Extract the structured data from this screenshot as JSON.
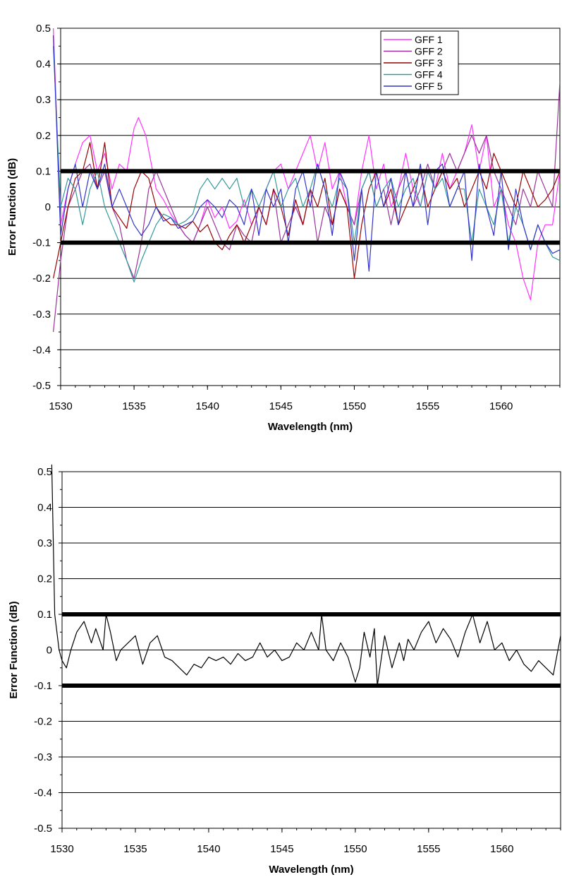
{
  "chart_data": [
    {
      "type": "line",
      "title": "",
      "xlabel": "Wavelength (nm)",
      "ylabel": "Error Function (dB)",
      "xlim": [
        1530,
        1564
      ],
      "ylim": [
        -0.5,
        0.5
      ],
      "x_ticks": [
        1530,
        1535,
        1540,
        1545,
        1550,
        1555,
        1560
      ],
      "y_ticks": [
        -0.5,
        -0.4,
        -0.3,
        -0.2,
        -0.1,
        0,
        0.1,
        0.2,
        0.3,
        0.4,
        0.5
      ],
      "y_tick_labels": [
        "-0.5",
        "-0.4",
        "-0.3",
        "-0.2",
        "-0.1",
        "0",
        "0.1",
        "0.2",
        "0.3",
        "0.4",
        "0.5"
      ],
      "x_tick_labels": [
        "1530",
        "1535",
        "1540",
        "1545",
        "1550",
        "1555",
        "1560"
      ],
      "grid": "horizontal",
      "legend_position": "top-right",
      "limit_lines": [
        0.1,
        -0.1
      ],
      "series": [
        {
          "name": "GFF 1",
          "color": "#ff33ff",
          "x": [
            1529.5,
            1530,
            1530.5,
            1531,
            1531.5,
            1532,
            1532.5,
            1533,
            1533.5,
            1534,
            1534.5,
            1535,
            1535.3,
            1535.8,
            1536.5,
            1537,
            1537.5,
            1538,
            1538.5,
            1539,
            1539.5,
            1540,
            1540.5,
            1541,
            1541.5,
            1542,
            1542.5,
            1543,
            1543.5,
            1544,
            1544.5,
            1545,
            1545.5,
            1546,
            1546.5,
            1547,
            1547.5,
            1548,
            1548.5,
            1549,
            1549.5,
            1550,
            1550.5,
            1551,
            1551.5,
            1552,
            1552.5,
            1553,
            1553.5,
            1554,
            1554.5,
            1555,
            1555.5,
            1556,
            1556.5,
            1557,
            1557.5,
            1558,
            1558.5,
            1559,
            1559.5,
            1560,
            1560.5,
            1561,
            1561.5,
            1562,
            1562.5,
            1563,
            1563.5,
            1564
          ],
          "values": [
            0.5,
            -0.05,
            0.05,
            0.12,
            0.18,
            0.2,
            0.1,
            0.15,
            0.05,
            0.12,
            0.1,
            0.22,
            0.25,
            0.2,
            0.05,
            0.02,
            -0.02,
            -0.05,
            -0.08,
            -0.1,
            -0.05,
            0.02,
            -0.03,
            0.0,
            -0.06,
            -0.04,
            0.02,
            -0.05,
            0.0,
            0.05,
            0.1,
            0.12,
            0.05,
            0.1,
            0.15,
            0.2,
            0.1,
            0.18,
            0.05,
            0.1,
            0.0,
            -0.05,
            0.1,
            0.2,
            0.05,
            0.12,
            0.0,
            0.05,
            0.15,
            0.05,
            0.0,
            0.1,
            0.05,
            0.15,
            0.05,
            0.1,
            0.15,
            0.23,
            0.1,
            0.2,
            0.0,
            0.05,
            -0.05,
            -0.1,
            -0.2,
            -0.26,
            -0.1,
            -0.05,
            -0.05,
            0.1
          ]
        },
        {
          "name": "GFF 2",
          "color": "#993399",
          "x": [
            1529.5,
            1530,
            1530.5,
            1531,
            1531.5,
            1532,
            1532.5,
            1533,
            1533.5,
            1534,
            1534.5,
            1535,
            1535.5,
            1536,
            1536.5,
            1537,
            1537.5,
            1538,
            1538.5,
            1539,
            1539.5,
            1540,
            1540.5,
            1541,
            1541.5,
            1542,
            1542.5,
            1543,
            1543.5,
            1544,
            1544.5,
            1545,
            1545.5,
            1546,
            1546.5,
            1547,
            1547.5,
            1548,
            1548.5,
            1549,
            1549.5,
            1550,
            1550.5,
            1551,
            1551.5,
            1552,
            1552.5,
            1553,
            1553.5,
            1554,
            1554.5,
            1555,
            1555.5,
            1556,
            1556.5,
            1557,
            1557.5,
            1558,
            1558.5,
            1559,
            1559.5,
            1560,
            1560.5,
            1561,
            1561.5,
            1562,
            1562.5,
            1563,
            1563.5,
            1564
          ],
          "values": [
            -0.35,
            -0.15,
            0.0,
            0.05,
            0.1,
            0.12,
            0.05,
            0.1,
            0.0,
            -0.05,
            -0.15,
            -0.2,
            -0.1,
            0.05,
            0.1,
            0.05,
            0.0,
            -0.05,
            -0.08,
            -0.1,
            -0.05,
            0.0,
            -0.05,
            -0.1,
            -0.12,
            -0.05,
            -0.08,
            -0.1,
            0.0,
            -0.05,
            0.05,
            -0.1,
            -0.05,
            0.0,
            -0.05,
            0.05,
            -0.1,
            0.0,
            -0.05,
            0.05,
            0.0,
            -0.05,
            0.05,
            0.1,
            0.0,
            0.05,
            -0.05,
            0.05,
            0.1,
            0.0,
            0.05,
            0.12,
            0.05,
            0.1,
            0.15,
            0.1,
            0.15,
            0.2,
            0.15,
            0.2,
            0.1,
            0.05,
            0.0,
            -0.05,
            0.05,
            0.0,
            0.1,
            0.05,
            0.0,
            0.35
          ]
        },
        {
          "name": "GFF 3",
          "color": "#990000",
          "x": [
            1529.5,
            1530,
            1530.5,
            1531,
            1531.5,
            1532,
            1532.5,
            1533,
            1533.5,
            1534,
            1534.5,
            1535,
            1535.5,
            1536,
            1536.5,
            1537,
            1537.5,
            1538,
            1538.5,
            1539,
            1539.5,
            1540,
            1540.5,
            1541,
            1541.5,
            1542,
            1542.5,
            1543,
            1543.5,
            1544,
            1544.5,
            1545,
            1545.5,
            1546,
            1546.5,
            1547,
            1547.5,
            1548,
            1548.5,
            1549,
            1549.5,
            1550,
            1550.5,
            1551,
            1551.5,
            1552,
            1552.5,
            1553,
            1553.5,
            1554,
            1554.5,
            1555,
            1555.5,
            1556,
            1556.5,
            1557,
            1557.5,
            1558,
            1558.5,
            1559,
            1559.5,
            1560,
            1560.5,
            1561,
            1561.5,
            1562,
            1562.5,
            1563,
            1563.5,
            1564
          ],
          "values": [
            -0.2,
            -0.1,
            0.0,
            0.08,
            0.1,
            0.18,
            0.05,
            0.18,
            0.0,
            -0.03,
            -0.06,
            0.05,
            0.1,
            0.08,
            0.0,
            -0.03,
            -0.05,
            -0.05,
            -0.06,
            -0.04,
            -0.07,
            -0.05,
            -0.1,
            -0.12,
            -0.08,
            -0.05,
            -0.1,
            -0.05,
            0.0,
            -0.05,
            0.05,
            0.0,
            -0.08,
            0.02,
            -0.05,
            0.05,
            0.0,
            0.08,
            -0.05,
            0.05,
            0.0,
            -0.2,
            -0.05,
            0.05,
            0.1,
            0.0,
            0.05,
            -0.05,
            0.0,
            0.05,
            0.1,
            0.0,
            0.05,
            0.1,
            0.05,
            0.08,
            0.0,
            0.05,
            0.1,
            0.05,
            0.15,
            0.1,
            0.05,
            0.0,
            0.1,
            0.05,
            0.0,
            0.02,
            0.05,
            0.1
          ]
        },
        {
          "name": "GFF 4",
          "color": "#339999",
          "x": [
            1529.5,
            1530,
            1530.5,
            1531,
            1531.5,
            1532,
            1532.5,
            1533,
            1533.5,
            1534,
            1534.5,
            1535,
            1535.5,
            1536,
            1536.5,
            1537,
            1537.5,
            1538,
            1538.5,
            1539,
            1539.5,
            1540,
            1540.5,
            1541,
            1541.5,
            1542,
            1542.5,
            1543,
            1543.5,
            1544,
            1544.5,
            1545,
            1545.5,
            1546,
            1546.5,
            1547,
            1547.5,
            1548,
            1548.5,
            1549,
            1549.5,
            1550,
            1550.5,
            1551,
            1551.5,
            1552,
            1552.5,
            1553,
            1553.5,
            1554,
            1554.5,
            1555,
            1555.5,
            1556,
            1556.5,
            1557,
            1557.5,
            1558,
            1558.5,
            1559,
            1559.5,
            1560,
            1560.5,
            1561,
            1561.5,
            1562,
            1562.5,
            1563,
            1563.5,
            1564
          ],
          "values": [
            0.45,
            0.0,
            0.08,
            0.05,
            -0.05,
            0.05,
            0.1,
            0.0,
            -0.05,
            -0.1,
            -0.15,
            -0.21,
            -0.15,
            -0.1,
            -0.05,
            -0.02,
            -0.03,
            -0.05,
            -0.04,
            -0.02,
            0.05,
            0.08,
            0.05,
            0.08,
            0.05,
            0.08,
            0.0,
            0.05,
            0.0,
            0.05,
            0.1,
            0.0,
            0.05,
            0.08,
            0.0,
            0.05,
            0.12,
            0.05,
            0.0,
            0.08,
            0.05,
            -0.1,
            0.05,
            0.1,
            0.0,
            0.05,
            0.08,
            0.0,
            0.05,
            0.08,
            0.0,
            0.1,
            0.05,
            0.08,
            0.0,
            0.05,
            0.05,
            -0.1,
            0.05,
            0.0,
            -0.05,
            0.05,
            -0.1,
            0.0,
            -0.05,
            -0.12,
            -0.05,
            -0.1,
            -0.14,
            -0.15
          ]
        },
        {
          "name": "GFF 5",
          "color": "#3333cc",
          "x": [
            1529.5,
            1530,
            1530.5,
            1531,
            1531.5,
            1532,
            1532.5,
            1533,
            1533.5,
            1534,
            1534.5,
            1535,
            1535.5,
            1536,
            1536.5,
            1537,
            1537.5,
            1538,
            1538.5,
            1539,
            1539.5,
            1540,
            1540.5,
            1541,
            1541.5,
            1542,
            1542.5,
            1543,
            1543.5,
            1544,
            1544.5,
            1545,
            1545.5,
            1546,
            1546.5,
            1547,
            1547.5,
            1548,
            1548.5,
            1549,
            1549.5,
            1550,
            1550.5,
            1551,
            1551.5,
            1552,
            1552.5,
            1553,
            1553.5,
            1554,
            1554.5,
            1555,
            1555.5,
            1556,
            1556.5,
            1557,
            1557.5,
            1558,
            1558.5,
            1559,
            1559.5,
            1560,
            1560.5,
            1561,
            1561.5,
            1562,
            1562.5,
            1563,
            1563.5,
            1564
          ],
          "values": [
            0.48,
            -0.08,
            0.05,
            0.12,
            0.0,
            0.1,
            0.05,
            0.12,
            0.0,
            0.05,
            0.0,
            -0.05,
            -0.08,
            -0.05,
            0.0,
            -0.04,
            -0.03,
            -0.06,
            -0.05,
            -0.04,
            0.0,
            0.02,
            0.0,
            -0.03,
            0.02,
            0.0,
            -0.05,
            0.05,
            -0.08,
            0.05,
            0.0,
            0.05,
            -0.1,
            0.05,
            0.1,
            0.0,
            0.12,
            0.05,
            -0.08,
            0.1,
            0.05,
            -0.15,
            0.05,
            -0.18,
            0.1,
            0.0,
            0.08,
            -0.05,
            0.1,
            0.0,
            0.12,
            -0.05,
            0.1,
            0.12,
            0.0,
            0.05,
            0.1,
            -0.15,
            0.12,
            0.0,
            -0.08,
            0.1,
            -0.12,
            0.05,
            -0.05,
            -0.12,
            -0.05,
            -0.1,
            -0.13,
            -0.12
          ]
        }
      ]
    },
    {
      "type": "line",
      "title": "",
      "xlabel": "Wavelength (nm)",
      "ylabel": "Error Function (dB)",
      "xlim": [
        1530,
        1564
      ],
      "ylim": [
        -0.5,
        0.5
      ],
      "x_ticks": [
        1530,
        1535,
        1540,
        1545,
        1550,
        1555,
        1560
      ],
      "y_ticks": [
        -0.5,
        -0.4,
        -0.3,
        -0.2,
        -0.1,
        0,
        0.1,
        0.2,
        0.3,
        0.4,
        0.5
      ],
      "y_tick_labels": [
        "-0.5",
        "-0.4",
        "-0.3",
        "-0.2",
        "-0.1",
        "0",
        "0.1",
        "0.2",
        "0.3",
        "0.4",
        "0.5"
      ],
      "x_tick_labels": [
        "1530",
        "1535",
        "1540",
        "1545",
        "1550",
        "1555",
        "1560"
      ],
      "grid": "horizontal",
      "limit_lines": [
        0.1,
        -0.1
      ],
      "series": [
        {
          "color": "#000000",
          "x": [
            1529.3,
            1529.5,
            1529.8,
            1530,
            1530.3,
            1530.6,
            1531,
            1531.5,
            1532,
            1532.3,
            1532.8,
            1533,
            1533.3,
            1533.7,
            1534,
            1534.5,
            1535,
            1535.5,
            1536,
            1536.5,
            1537,
            1537.5,
            1538,
            1538.5,
            1539,
            1539.5,
            1540,
            1540.5,
            1541,
            1541.5,
            1542,
            1542.5,
            1543,
            1543.5,
            1544,
            1544.5,
            1545,
            1545.5,
            1546,
            1546.5,
            1547,
            1547.5,
            1547.7,
            1548,
            1548.5,
            1549,
            1549.5,
            1550,
            1550.3,
            1550.6,
            1551,
            1551.3,
            1551.5,
            1552,
            1552.5,
            1553,
            1553.3,
            1553.6,
            1554,
            1554.5,
            1555,
            1555.5,
            1556,
            1556.5,
            1557,
            1557.5,
            1558,
            1558.5,
            1559,
            1559.5,
            1560,
            1560.5,
            1561,
            1561.5,
            1562,
            1562.5,
            1563,
            1563.5,
            1564
          ],
          "values": [
            0.52,
            0.1,
            0.0,
            -0.03,
            -0.05,
            0.0,
            0.05,
            0.08,
            0.02,
            0.06,
            0.0,
            0.1,
            0.05,
            -0.03,
            0.0,
            0.02,
            0.04,
            -0.04,
            0.02,
            0.04,
            -0.02,
            -0.03,
            -0.05,
            -0.07,
            -0.04,
            -0.05,
            -0.02,
            -0.03,
            -0.02,
            -0.04,
            -0.01,
            -0.03,
            -0.02,
            0.02,
            -0.02,
            0.0,
            -0.03,
            -0.02,
            0.02,
            0.0,
            0.05,
            0.0,
            0.1,
            0.0,
            -0.03,
            0.02,
            -0.02,
            -0.09,
            -0.05,
            0.05,
            -0.02,
            0.06,
            -0.1,
            0.04,
            -0.05,
            0.02,
            -0.03,
            0.03,
            0.0,
            0.05,
            0.08,
            0.02,
            0.06,
            0.03,
            -0.02,
            0.05,
            0.1,
            0.02,
            0.08,
            0.0,
            0.02,
            -0.03,
            0.0,
            -0.04,
            -0.06,
            -0.03,
            -0.05,
            -0.07,
            0.04
          ]
        }
      ]
    }
  ]
}
